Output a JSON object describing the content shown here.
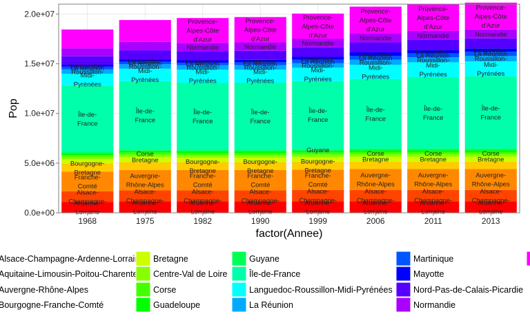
{
  "chart_data": {
    "type": "bar",
    "stacked": true,
    "xlabel": "factor(Annee)",
    "ylabel": "Pop",
    "ylim": [
      0,
      21000000
    ],
    "yticks": [
      0,
      5000000,
      10000000,
      15000000,
      20000000
    ],
    "ytick_labels": [
      "0.0e+00",
      "5.0e+06",
      "1.0e+07",
      "1.5e+07",
      "2.0e+07"
    ],
    "grid": true,
    "legend_position": "bottom",
    "categories": [
      "1968",
      "1975",
      "1982",
      "1990",
      "1999",
      "2006",
      "2011",
      "2013"
    ],
    "series": [
      {
        "name": "Alsace-Champagne-Ardenne-Lorraine",
        "color": "#FF0000",
        "values": [
          1100000,
          1150000,
          1150000,
          1150000,
          1150000,
          1150000,
          1150000,
          1150000
        ]
      },
      {
        "name": "Aquitaine-Limousin-Poitou-Charentes",
        "color": "#FF4400",
        "values": [
          1050000,
          1100000,
          1100000,
          1100000,
          1150000,
          1150000,
          1150000,
          1150000
        ]
      },
      {
        "name": "Auvergne-Rhône-Alpes",
        "color": "#FF8800",
        "values": [
          2000000,
          2050000,
          2050000,
          2050000,
          2050000,
          2100000,
          2100000,
          2100000
        ]
      },
      {
        "name": "Bourgogne-Franche-Comté",
        "color": "#FFCC00",
        "values": [
          800000,
          800000,
          800000,
          800000,
          800000,
          750000,
          750000,
          750000
        ]
      },
      {
        "name": "Bretagne",
        "color": "#CCFF00",
        "values": [
          450000,
          500000,
          450000,
          450000,
          450000,
          500000,
          500000,
          500000
        ]
      },
      {
        "name": "Centre-Val de Loire",
        "color": "#88FF00",
        "values": [
          250000,
          250000,
          250000,
          250000,
          250000,
          250000,
          250000,
          250000
        ]
      },
      {
        "name": "Corse",
        "color": "#44FF00",
        "values": [
          150000,
          200000,
          200000,
          200000,
          200000,
          200000,
          200000,
          200000
        ]
      },
      {
        "name": "Guadeloupe",
        "color": "#00FF00",
        "values": [
          200000,
          200000,
          200000,
          200000,
          200000,
          200000,
          200000,
          200000
        ]
      },
      {
        "name": "Guyane",
        "color": "#00FF55",
        "values": [
          100000,
          100000,
          100000,
          100000,
          150000,
          150000,
          150000,
          150000
        ]
      },
      {
        "name": "Île-de-France",
        "color": "#00FFAA",
        "values": [
          6700000,
          6900000,
          6800000,
          6800000,
          6850000,
          7000000,
          7200000,
          7300000
        ]
      },
      {
        "name": "Languedoc-Roussillon-Midi-Pyrénées",
        "color": "#00FFFF",
        "values": [
          1200000,
          1250000,
          1300000,
          1300000,
          1350000,
          1450000,
          1500000,
          1500000
        ]
      },
      {
        "name": "La Réunion",
        "color": "#00AAFF",
        "values": [
          450000,
          450000,
          450000,
          450000,
          450000,
          500000,
          500000,
          550000
        ]
      },
      {
        "name": "Martinique",
        "color": "#0055FF",
        "values": [
          250000,
          250000,
          250000,
          300000,
          350000,
          400000,
          400000,
          400000
        ]
      },
      {
        "name": "Mayotte",
        "color": "#0000FF",
        "values": [
          200000,
          250000,
          250000,
          250000,
          300000,
          350000,
          350000,
          350000
        ]
      },
      {
        "name": "Nord-Pas-de-Calais-Picardie",
        "color": "#5500FF",
        "values": [
          850000,
          900000,
          900000,
          900000,
          950000,
          1000000,
          1000000,
          1000000
        ]
      },
      {
        "name": "Normandie",
        "color": "#AA00FF",
        "values": [
          800000,
          850000,
          850000,
          850000,
          850000,
          900000,
          900000,
          900000
        ]
      },
      {
        "name": "Provence-Alpes-Côte d'Azur",
        "color": "#FF00FF",
        "values": [
          1900000,
          2200000,
          2500000,
          2550000,
          2550000,
          2700000,
          2700000,
          2700000
        ]
      }
    ],
    "bar_labels": [
      {
        "series": "Alsace-Champagne-Ardenne-Lorraine",
        "bars": "all",
        "lines": [
          "Ardenne-",
          "Lorraine"
        ]
      },
      {
        "series": "Aquitaine-Limousin-Poitou-Charentes",
        "bars": "all",
        "lines": [
          "Alsace-",
          "Champagne-"
        ]
      },
      {
        "series": "Auvergne-Rhône-Alpes",
        "bars": [
          0,
          2,
          3,
          4
        ],
        "lines": [
          "Franche-",
          "Comté"
        ]
      },
      {
        "series": "Auvergne-Rhône-Alpes",
        "bars": [
          1,
          5,
          6,
          7
        ],
        "lines": [
          "Auvergne-",
          "Rhône-Alpes"
        ]
      },
      {
        "series": "Bourgogne-Franche-Comté",
        "bars": [
          0,
          2,
          3,
          4
        ],
        "lines": [
          "Bourgogne-",
          "Bretagne"
        ]
      },
      {
        "series": "Bretagne",
        "bars": [
          1,
          5,
          6,
          7
        ],
        "lines": [
          "Bretagne"
        ]
      },
      {
        "series": "Corse",
        "bars": [
          1,
          5,
          6,
          7
        ],
        "lines": [
          "Corse"
        ]
      },
      {
        "series": "Guyane",
        "bars": [
          4
        ],
        "lines": [
          "Guyane"
        ]
      },
      {
        "series": "Île-de-France",
        "bars": "all",
        "lines": [
          "Île-de-",
          "France"
        ]
      },
      {
        "series": "Languedoc-Roussillon-Midi-Pyrénées",
        "bars": "all",
        "lines": [
          "Midi-",
          "Pyrénées"
        ]
      },
      {
        "series": "La Réunion",
        "bars": "all",
        "lines": [
          "Roussillon-"
        ]
      },
      {
        "series": "Martinique",
        "bars": "all",
        "lines": [
          "La Réunion"
        ]
      },
      {
        "series": "Mayotte",
        "bars": "all",
        "lines": [
          "Languedoc-"
        ]
      },
      {
        "series": "Normandie",
        "bars": [
          2,
          3,
          4,
          5,
          6,
          7
        ],
        "lines": [
          "Normandie"
        ]
      },
      {
        "series": "Provence-Alpes-Côte d'Azur",
        "bars": [
          2,
          3,
          4,
          5,
          6,
          7
        ],
        "lines": [
          "Provence-",
          "Alpes-Côte",
          "d'Azur"
        ]
      }
    ],
    "legend_columns": [
      [
        "Alsace-Champagne-Ardenne-Lorraine",
        "Aquitaine-Limousin-Poitou-Charentes",
        "Auvergne-Rhône-Alpes",
        "Bourgogne-Franche-Comté"
      ],
      [
        "Bretagne",
        "Centre-Val de Loire",
        "Corse",
        "Guadeloupe"
      ],
      [
        "Guyane",
        "Île-de-France",
        "Languedoc-Roussillon-Midi-Pyrénées",
        "La Réunion"
      ],
      [
        "Martinique",
        "Mayotte",
        "Nord-Pas-de-Calais-Picardie",
        "Normandie"
      ],
      [
        "Provence-Alpes-Côte d'Azur"
      ]
    ]
  }
}
